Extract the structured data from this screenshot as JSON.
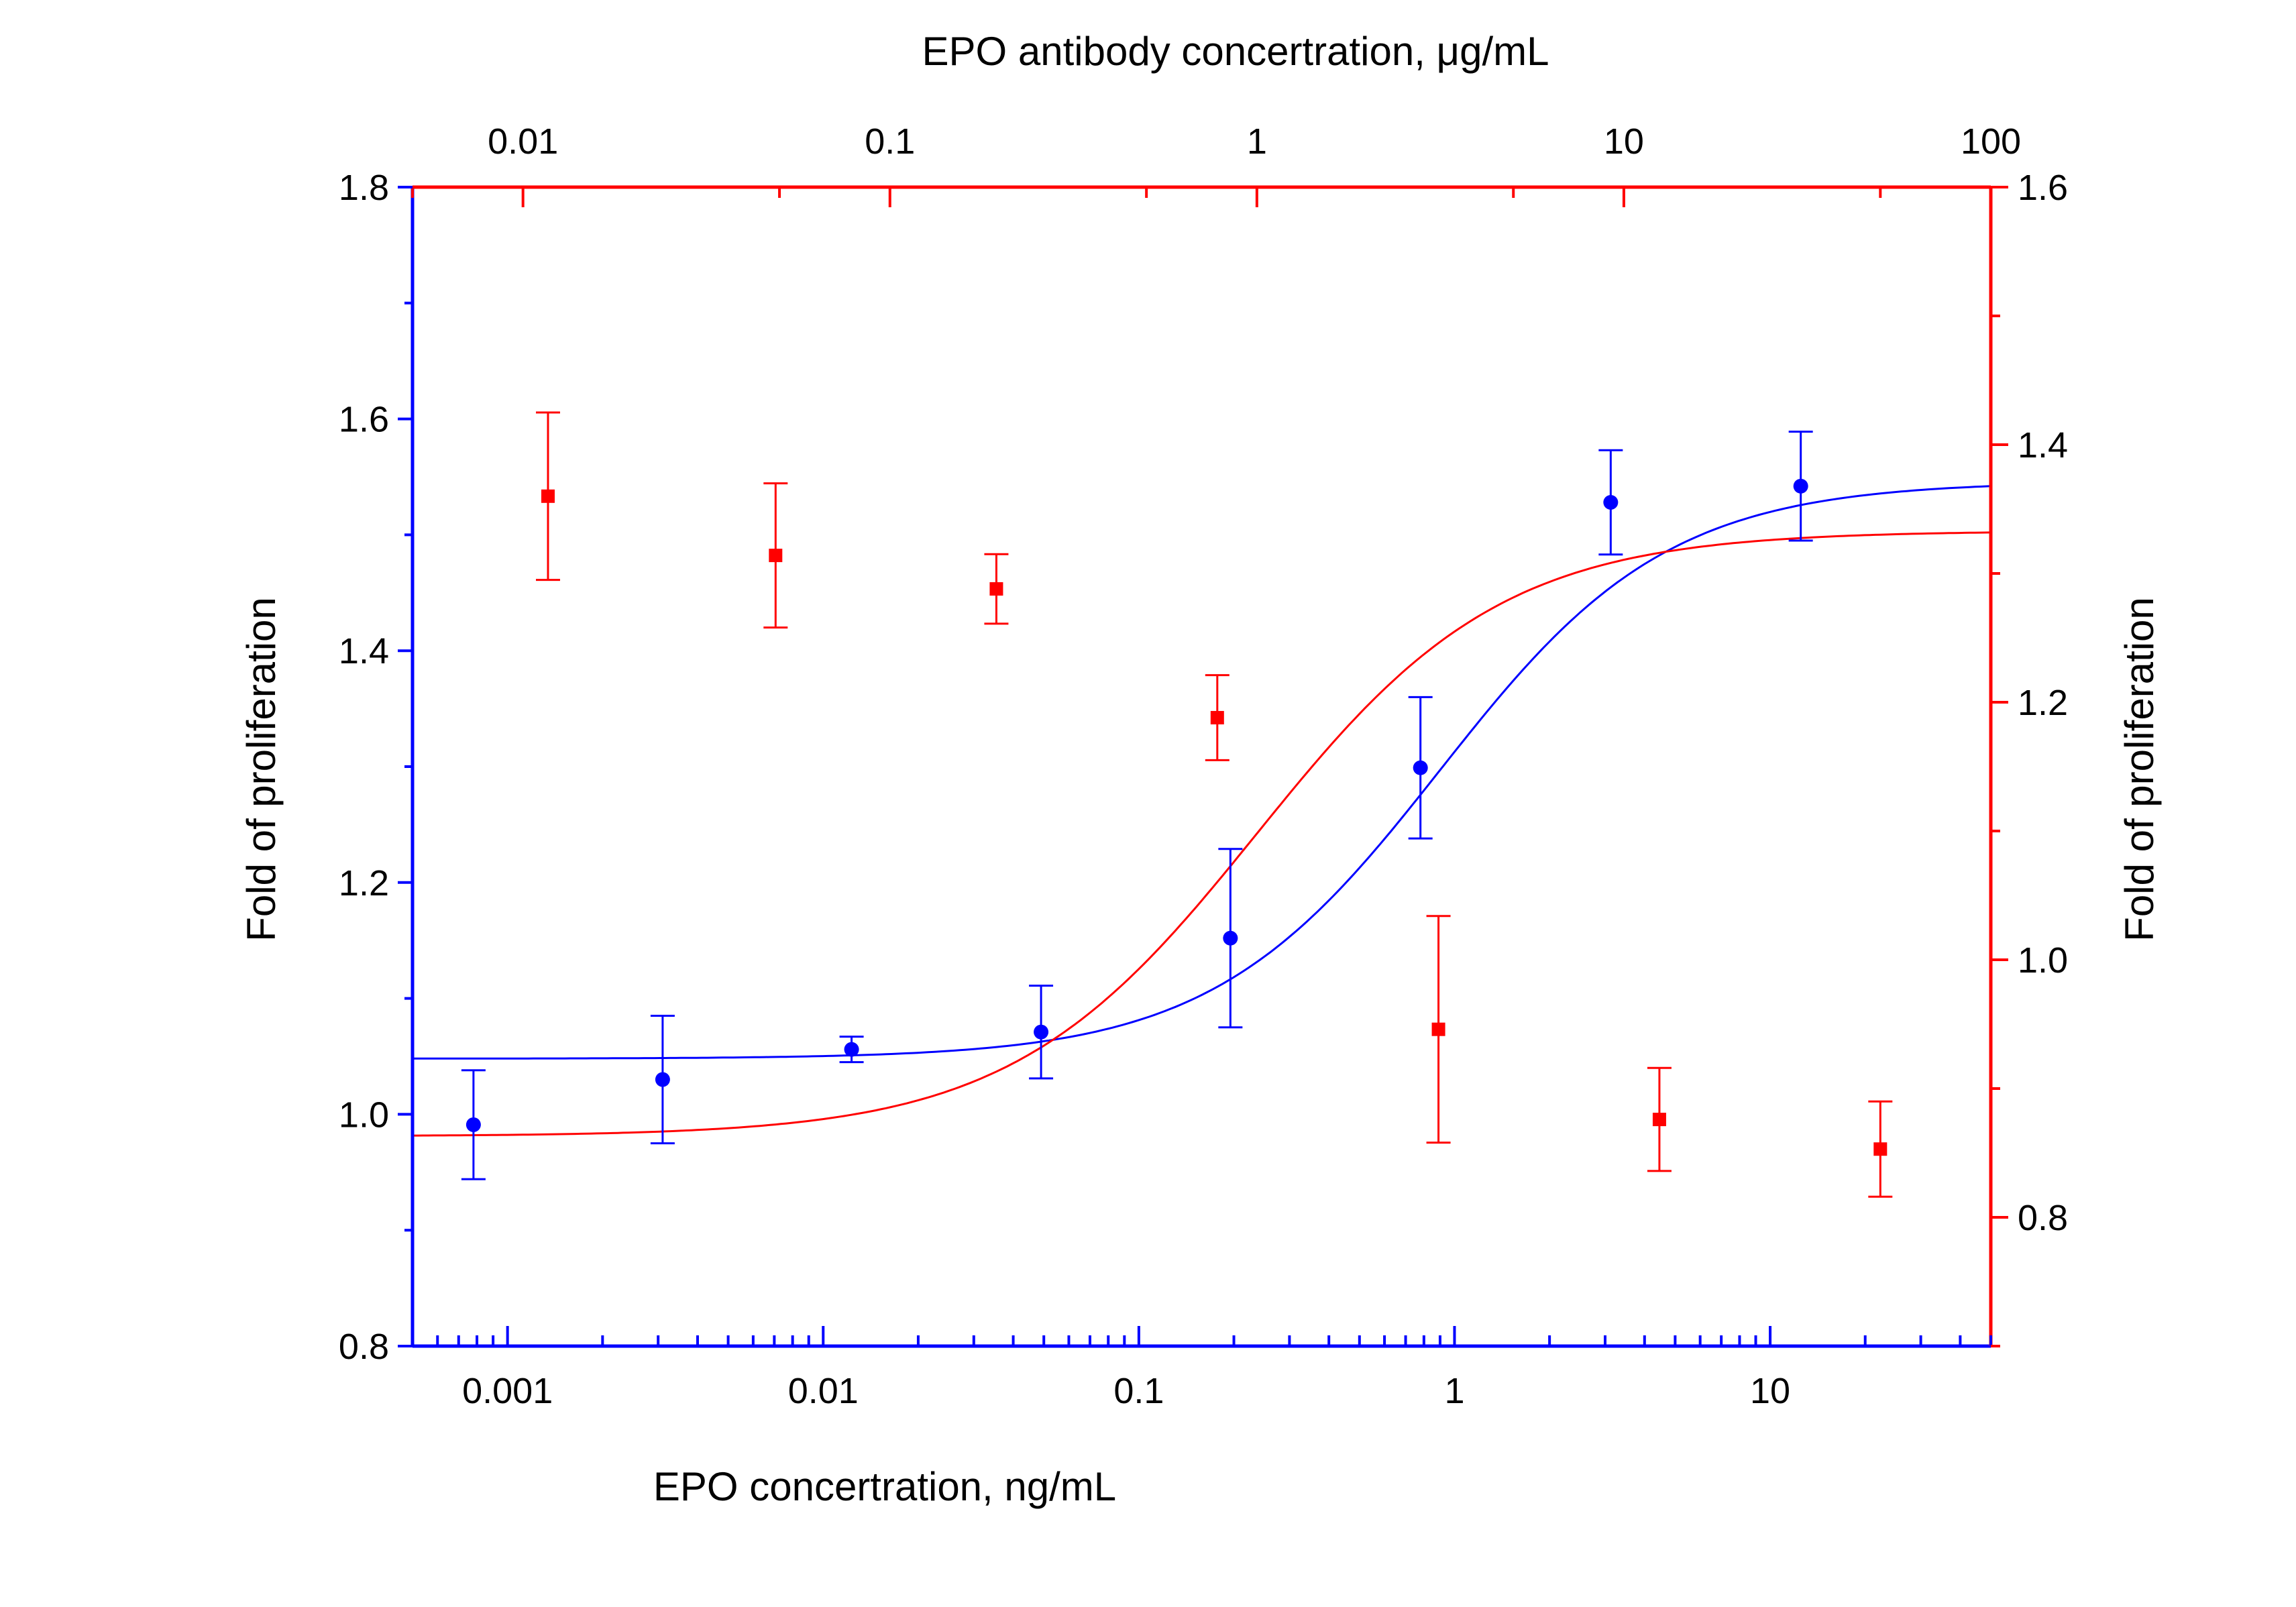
{
  "chart_data": {
    "type": "scatter",
    "bottom_axis": {
      "label": "EPO  concertration, ng/mL",
      "scale": "log",
      "range": [
        0.0005,
        50
      ],
      "ticks": [
        {
          "value": 0.001,
          "label": "0.001"
        },
        {
          "value": 0.01,
          "label": "0.01"
        },
        {
          "value": 0.1,
          "label": "0.1"
        },
        {
          "value": 1,
          "label": "1"
        },
        {
          "value": 10,
          "label": "10"
        }
      ],
      "color": "#0000ff"
    },
    "top_axis": {
      "label": "EPO antibody concertration, μg/mL",
      "scale": "log",
      "range": [
        0.005,
        100
      ],
      "ticks": [
        {
          "value": 0.01,
          "label": "0.01"
        },
        {
          "value": 0.1,
          "label": "0.1"
        },
        {
          "value": 1,
          "label": "1"
        },
        {
          "value": 10,
          "label": "10"
        },
        {
          "value": 100,
          "label": "100"
        }
      ],
      "color": "#ff0000"
    },
    "left_axis": {
      "label": "Fold of proliferation",
      "range": [
        0.8,
        1.8
      ],
      "ticks": [
        {
          "value": 0.8,
          "label": "0.8"
        },
        {
          "value": 1.0,
          "label": "1.0"
        },
        {
          "value": 1.2,
          "label": "1.2"
        },
        {
          "value": 1.4,
          "label": "1.4"
        },
        {
          "value": 1.6,
          "label": "1.6"
        },
        {
          "value": 1.8,
          "label": "1.8"
        }
      ],
      "color": "#0000ff"
    },
    "right_axis": {
      "label": "Fold of proliferation",
      "range": [
        0.7,
        1.6
      ],
      "ticks": [
        {
          "value": 0.8,
          "label": "0.8"
        },
        {
          "value": 1.0,
          "label": "1.0"
        },
        {
          "value": 1.2,
          "label": "1.2"
        },
        {
          "value": 1.4,
          "label": "1.4"
        },
        {
          "value": 1.6,
          "label": "1.6"
        }
      ],
      "color": "#ff0000"
    },
    "series": [
      {
        "axes": "bottom-left",
        "marker": "circle",
        "color": "#0000ff",
        "points": [
          {
            "x": 0.00078,
            "y": 0.991,
            "err": 0.047
          },
          {
            "x": 0.0031,
            "y": 1.03,
            "err": 0.055
          },
          {
            "x": 0.0123,
            "y": 1.056,
            "err": 0.011
          },
          {
            "x": 0.049,
            "y": 1.071,
            "err": 0.04
          },
          {
            "x": 0.195,
            "y": 1.152,
            "err": 0.077
          },
          {
            "x": 0.78,
            "y": 1.299,
            "err": 0.061
          },
          {
            "x": 3.125,
            "y": 1.528,
            "err": 0.045
          },
          {
            "x": 12.5,
            "y": 1.542,
            "err": 0.047
          }
        ],
        "fit": {
          "model": "4PL",
          "bottom": 1.048,
          "top": 1.546,
          "ec50": 0.9,
          "hill": 1.2,
          "x_range": [
            0.0005,
            50
          ]
        }
      },
      {
        "axes": "top-right",
        "marker": "square",
        "color": "#ff0000",
        "points": [
          {
            "x": 0.0117,
            "y": 1.36,
            "err": 0.065
          },
          {
            "x": 0.0488,
            "y": 1.314,
            "err": 0.056
          },
          {
            "x": 0.195,
            "y": 1.288,
            "err": 0.027
          },
          {
            "x": 0.78,
            "y": 1.188,
            "err": 0.033
          },
          {
            "x": 3.125,
            "y": 0.946,
            "err": 0.088
          },
          {
            "x": 12.5,
            "y": 0.876,
            "err": 0.04
          },
          {
            "x": 50,
            "y": 0.853,
            "err": 0.037
          }
        ],
        "fit": {
          "model": "4PL",
          "bottom": 0.863,
          "top": 1.333,
          "ec50": 1.0,
          "hill": 1.3,
          "x_range": [
            0.005,
            100
          ]
        }
      }
    ]
  }
}
